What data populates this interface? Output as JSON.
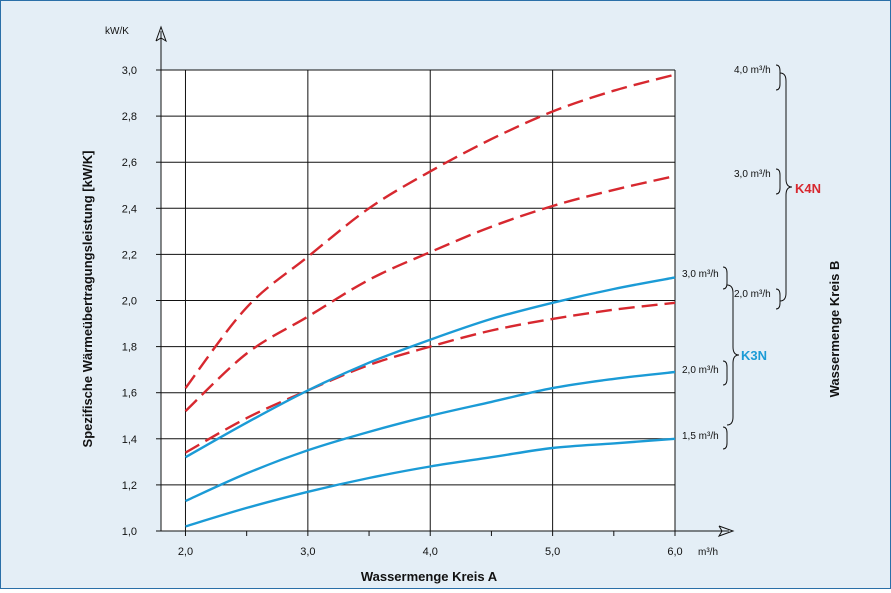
{
  "chart_data": {
    "type": "line",
    "title": "",
    "xlabel": "Wassermenge Kreis A",
    "ylabel": "Spezifische Wärmeübertragungsleistung [kW/K]",
    "right_label": "Wassermenge Kreis B",
    "x_unit": "m³/h",
    "y_unit": "kW/K",
    "xlim": [
      1.8,
      6.0
    ],
    "ylim": [
      1.0,
      3.0
    ],
    "x_ticks": [
      2.0,
      3.0,
      4.0,
      5.0,
      6.0
    ],
    "x_tick_labels": [
      "2,0",
      "3,0",
      "4,0",
      "5,0",
      "6,0"
    ],
    "y_ticks": [
      1.0,
      1.2,
      1.4,
      1.6,
      1.8,
      2.0,
      2.2,
      2.4,
      2.6,
      2.8,
      3.0
    ],
    "y_tick_labels": [
      "1,0",
      "1,2",
      "1,4",
      "1,6",
      "1,8",
      "2,0",
      "2,2",
      "2,4",
      "2,6",
      "2,8",
      "3,0"
    ],
    "grid": true,
    "groups": [
      {
        "name": "K4N",
        "color": "#d7282f",
        "style": "dashed",
        "flow_labels": [
          "4,0 m³/h",
          "3,0 m³/h",
          "2,0 m³/h"
        ]
      },
      {
        "name": "K3N",
        "color": "#1b9bd6",
        "style": "solid",
        "flow_labels": [
          "3,0 m³/h",
          "2,0 m³/h",
          "1,5 m³/h"
        ]
      }
    ],
    "series": [
      {
        "name": "4,0 m³/h",
        "group": "K4N",
        "x": [
          2.0,
          2.5,
          3.0,
          3.5,
          4.0,
          4.5,
          5.0,
          5.5,
          6.0
        ],
        "y": [
          1.62,
          1.97,
          2.19,
          2.4,
          2.56,
          2.7,
          2.82,
          2.91,
          2.98
        ]
      },
      {
        "name": "3,0 m³/h",
        "group": "K4N",
        "x": [
          2.0,
          2.5,
          3.0,
          3.5,
          4.0,
          4.5,
          5.0,
          5.5,
          6.0
        ],
        "y": [
          1.52,
          1.77,
          1.93,
          2.09,
          2.21,
          2.32,
          2.41,
          2.48,
          2.54
        ]
      },
      {
        "name": "2,0 m³/h",
        "group": "K4N",
        "x": [
          2.0,
          2.5,
          3.0,
          3.5,
          4.0,
          4.5,
          5.0,
          5.5,
          6.0
        ],
        "y": [
          1.34,
          1.49,
          1.61,
          1.72,
          1.8,
          1.87,
          1.92,
          1.96,
          1.99
        ]
      },
      {
        "name": "3,0 m³/h",
        "group": "K3N",
        "x": [
          2.0,
          2.5,
          3.0,
          3.5,
          4.0,
          4.5,
          5.0,
          5.5,
          6.0
        ],
        "y": [
          1.32,
          1.47,
          1.61,
          1.73,
          1.83,
          1.92,
          1.99,
          2.05,
          2.1
        ]
      },
      {
        "name": "2,0 m³/h",
        "group": "K3N",
        "x": [
          2.0,
          2.5,
          3.0,
          3.5,
          4.0,
          4.5,
          5.0,
          5.5,
          6.0
        ],
        "y": [
          1.13,
          1.25,
          1.35,
          1.43,
          1.5,
          1.56,
          1.62,
          1.66,
          1.69
        ]
      },
      {
        "name": "1,5 m³/h",
        "group": "K3N",
        "x": [
          2.0,
          2.5,
          3.0,
          3.5,
          4.0,
          4.5,
          5.0,
          5.5,
          6.0
        ],
        "y": [
          1.02,
          1.1,
          1.17,
          1.23,
          1.28,
          1.32,
          1.36,
          1.38,
          1.4
        ]
      }
    ]
  }
}
